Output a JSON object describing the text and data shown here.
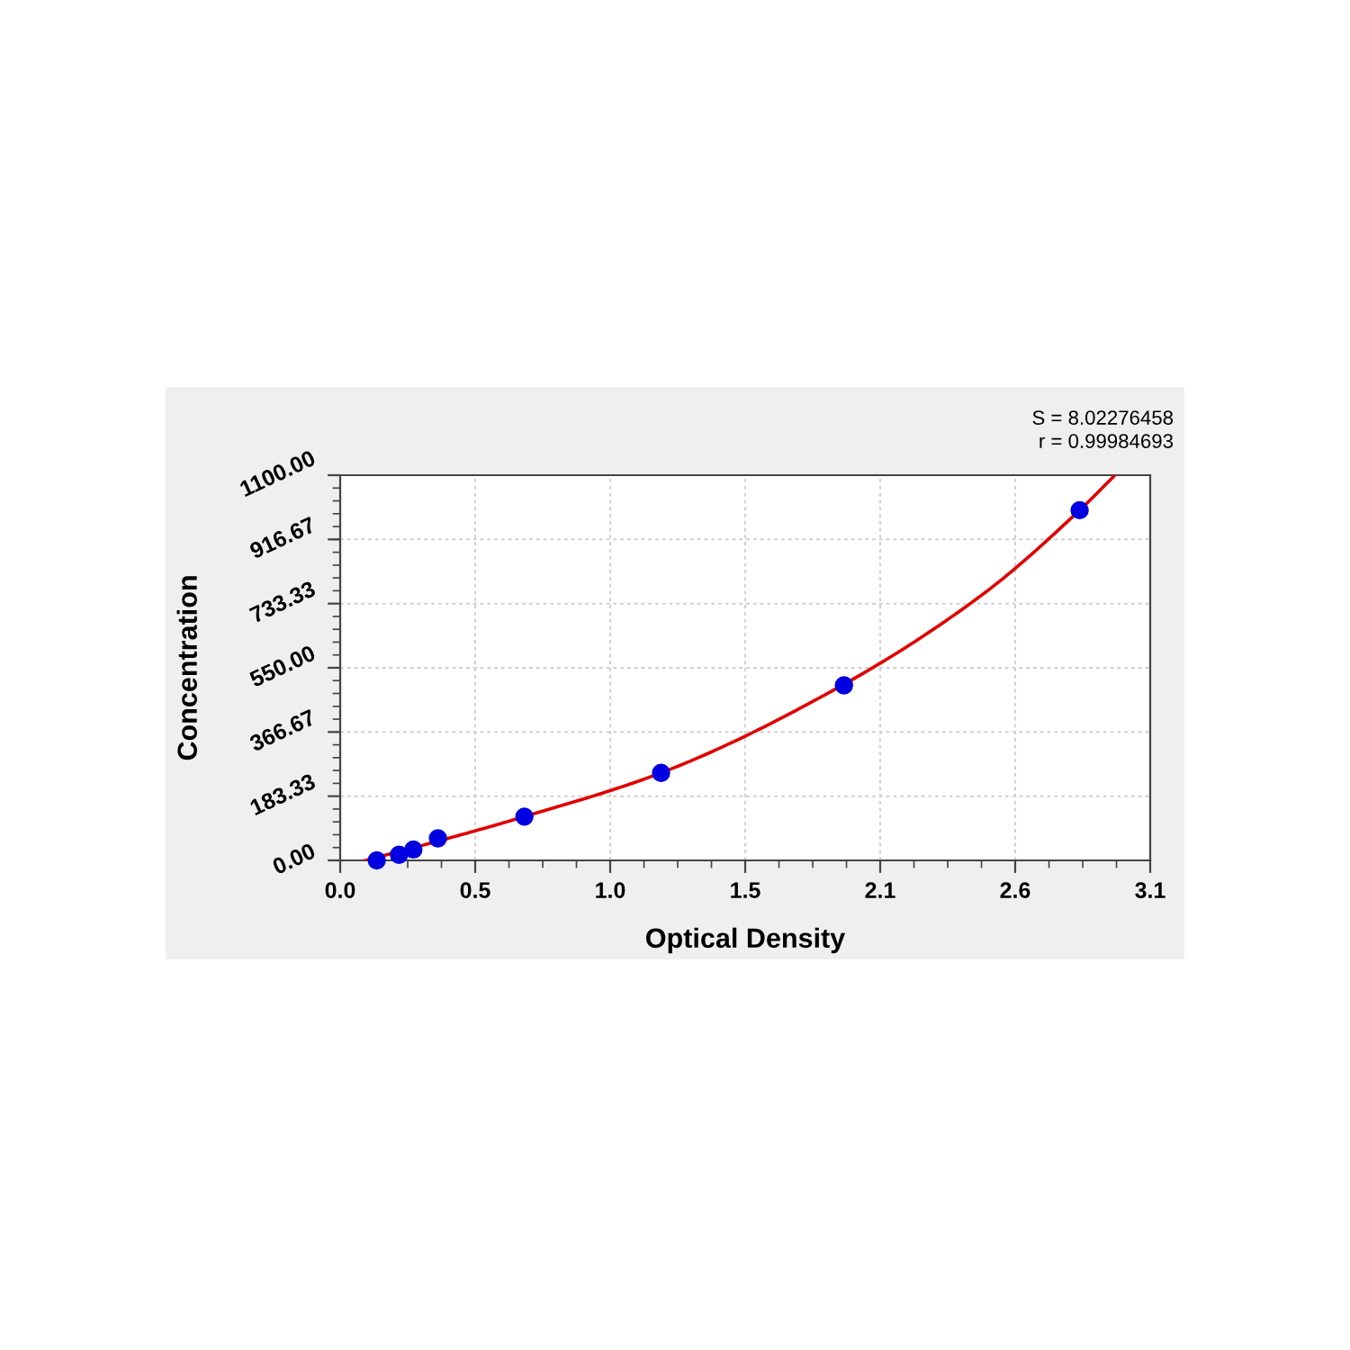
{
  "chart_data": {
    "type": "scatter",
    "xlabel": "Optical Density",
    "ylabel": "Concentration",
    "annotations": [
      "S = 8.02276458",
      "r = 0.99984693"
    ],
    "series": [
      {
        "color": "#0000e0",
        "marker": "circle",
        "x": [
          0.14,
          0.225,
          0.28,
          0.374,
          0.705,
          1.228,
          1.928,
          2.83
        ],
        "values": [
          0,
          16,
          31,
          63,
          125,
          250,
          500,
          1000
        ]
      },
      {
        "type": "line",
        "color": "#e00000",
        "line_style": "solid",
        "marker": "none",
        "x": [
          0.097,
          0.3,
          0.705,
          1.228,
          1.928,
          2.47,
          2.83,
          2.965
        ],
        "values": [
          0,
          40,
          125,
          250,
          503,
          766,
          1000,
          1100
        ]
      }
    ],
    "xlim": [
      0,
      3.1
    ],
    "xticks": [
      {
        "value": 0,
        "label": "0.0"
      },
      {
        "value": 0.5167,
        "label": "0.5"
      },
      {
        "value": 1.0333,
        "label": "1.0"
      },
      {
        "value": 1.55,
        "label": "1.5"
      },
      {
        "value": 2.0667,
        "label": "2.1"
      },
      {
        "value": 2.5833,
        "label": "2.6"
      },
      {
        "value": 3.1,
        "label": "3.1"
      }
    ],
    "ylim": [
      0,
      1100
    ],
    "yticks": [
      {
        "value": 0,
        "label": "0.00"
      },
      {
        "value": 183.33,
        "label": "183.33"
      },
      {
        "value": 366.67,
        "label": "366.67"
      },
      {
        "value": 550,
        "label": "550.00"
      },
      {
        "value": 733.33,
        "label": "733.33"
      },
      {
        "value": 916.67,
        "label": "916.67"
      },
      {
        "value": 1100,
        "label": "1100.00"
      }
    ],
    "grid": true
  }
}
